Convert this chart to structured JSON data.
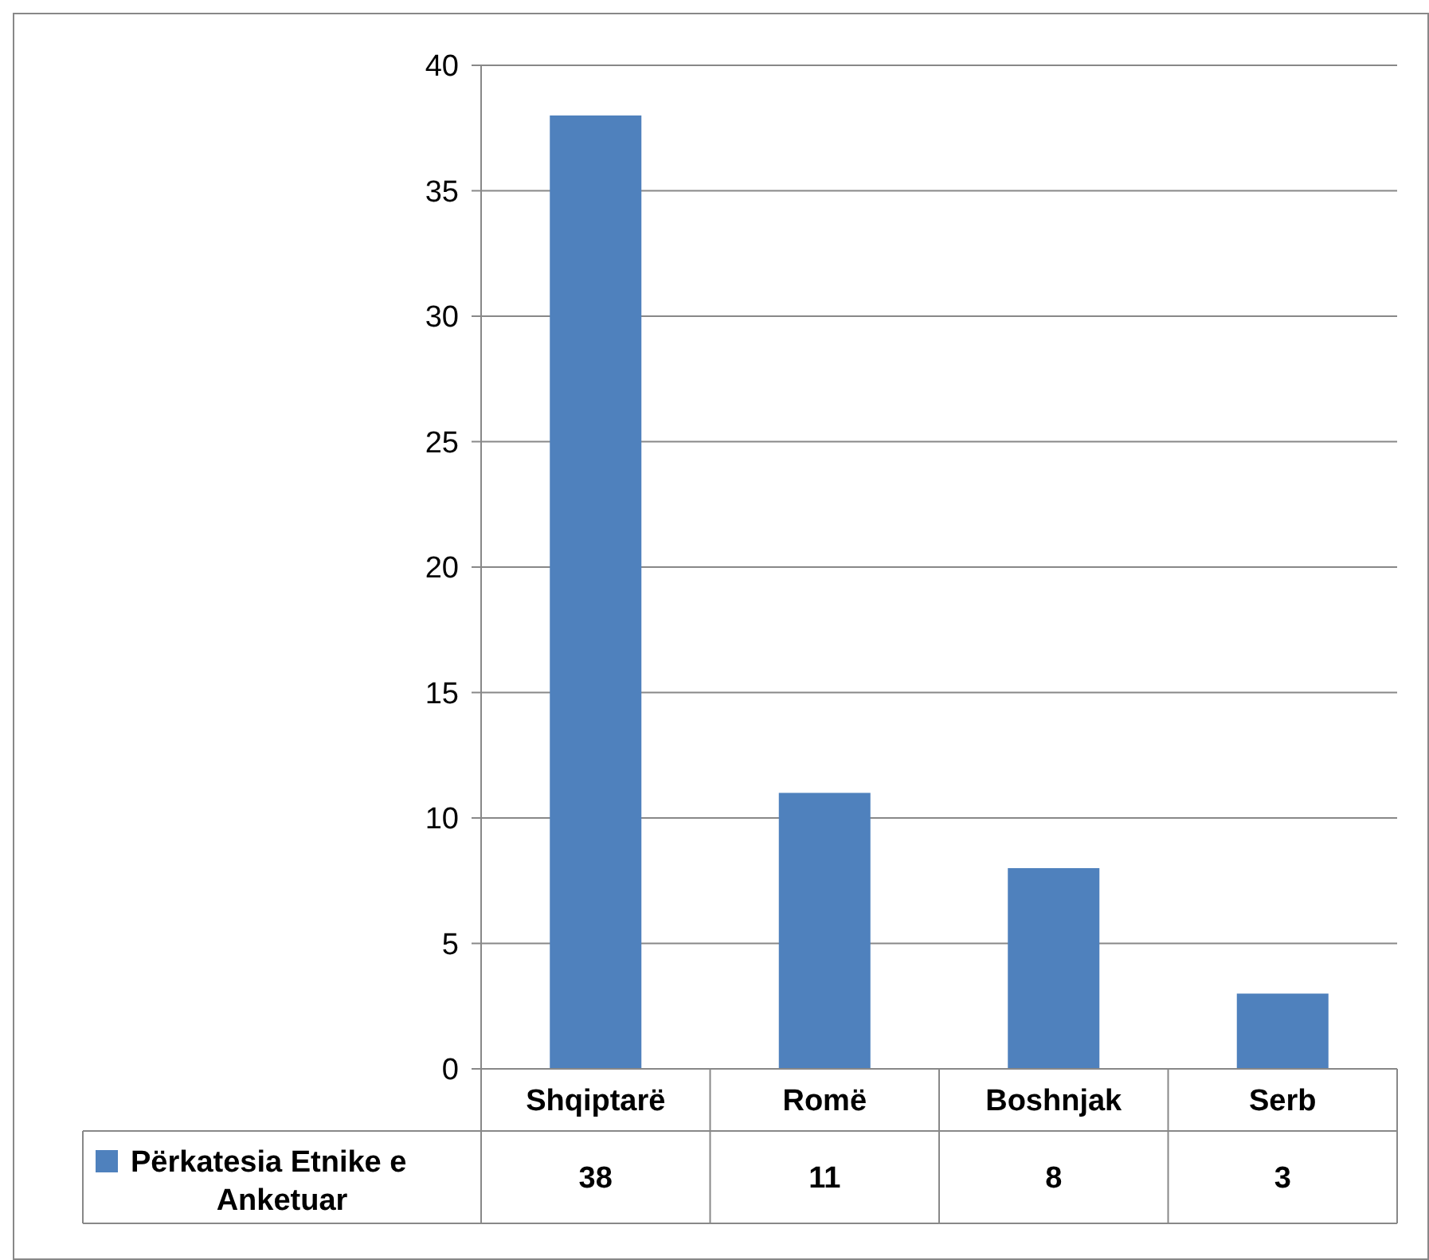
{
  "chart_data": {
    "type": "bar",
    "categories": [
      "Shqiptarë",
      "Romë",
      "Boshnjak",
      "Serb"
    ],
    "series": [
      {
        "name": "Përkatesia Etnike e Anketuar",
        "color": "#4f81bd",
        "values": [
          38,
          11,
          8,
          3
        ]
      }
    ],
    "ylim": [
      0,
      40
    ],
    "yticks": [
      0,
      5,
      10,
      15,
      20,
      25,
      30,
      35,
      40
    ],
    "grid": "y",
    "data_labels": true,
    "legend": "bottom left"
  }
}
